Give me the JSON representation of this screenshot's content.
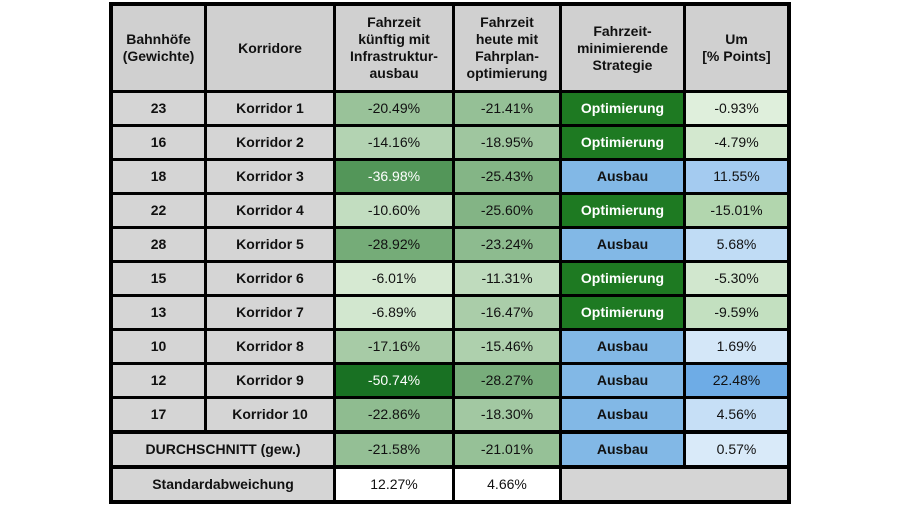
{
  "headers": [
    "Bahnhöfe\n(Gewichte)",
    "Korridore",
    "Fahrzeit\nkünftig mit\nInfrastruktur-\nausbau",
    "Fahrzeit\nheute mit\nFahrplan-\noptimierung",
    "Fahrzeit-\nminimierende\nStrategie",
    "Um\n[% Points]"
  ],
  "rows": [
    {
      "weight": "23",
      "corridor": "Korridor 1",
      "ausbau": "-20.49%",
      "optimierung": "-21.41%",
      "strategie": "Optimierung",
      "um": "-0.93%"
    },
    {
      "weight": "16",
      "corridor": "Korridor 2",
      "ausbau": "-14.16%",
      "optimierung": "-18.95%",
      "strategie": "Optimierung",
      "um": "-4.79%"
    },
    {
      "weight": "18",
      "corridor": "Korridor 3",
      "ausbau": "-36.98%",
      "optimierung": "-25.43%",
      "strategie": "Ausbau",
      "um": "11.55%"
    },
    {
      "weight": "22",
      "corridor": "Korridor 4",
      "ausbau": "-10.60%",
      "optimierung": "-25.60%",
      "strategie": "Optimierung",
      "um": "-15.01%"
    },
    {
      "weight": "28",
      "corridor": "Korridor 5",
      "ausbau": "-28.92%",
      "optimierung": "-23.24%",
      "strategie": "Ausbau",
      "um": "5.68%"
    },
    {
      "weight": "15",
      "corridor": "Korridor 6",
      "ausbau": "-6.01%",
      "optimierung": "-11.31%",
      "strategie": "Optimierung",
      "um": "-5.30%"
    },
    {
      "weight": "13",
      "corridor": "Korridor 7",
      "ausbau": "-6.89%",
      "optimierung": "-16.47%",
      "strategie": "Optimierung",
      "um": "-9.59%"
    },
    {
      "weight": "10",
      "corridor": "Korridor 8",
      "ausbau": "-17.16%",
      "optimierung": "-15.46%",
      "strategie": "Ausbau",
      "um": "1.69%"
    },
    {
      "weight": "12",
      "corridor": "Korridor 9",
      "ausbau": "-50.74%",
      "optimierung": "-28.27%",
      "strategie": "Ausbau",
      "um": "22.48%"
    },
    {
      "weight": "17",
      "corridor": "Korridor 10",
      "ausbau": "-22.86%",
      "optimierung": "-18.30%",
      "strategie": "Ausbau",
      "um": "4.56%"
    }
  ],
  "average": {
    "label": "DURCHSCHNITT (gew.)",
    "ausbau": "-21.58%",
    "optimierung": "-21.01%",
    "strategie": "Ausbau",
    "um": "0.57%"
  },
  "stddev": {
    "label": "Standardabweichung",
    "ausbau": "12.27%",
    "optimierung": "4.66%"
  },
  "colors": {
    "header_bg": "#d0d0d0",
    "label_bg": "#d5d5d5",
    "strategy_optimierung": "#1e7a22",
    "strategy_ausbau": "#82b8e6",
    "stddev_value_bg": "#ffffff",
    "stddev_empty_bg": "#d5d5d5"
  }
}
